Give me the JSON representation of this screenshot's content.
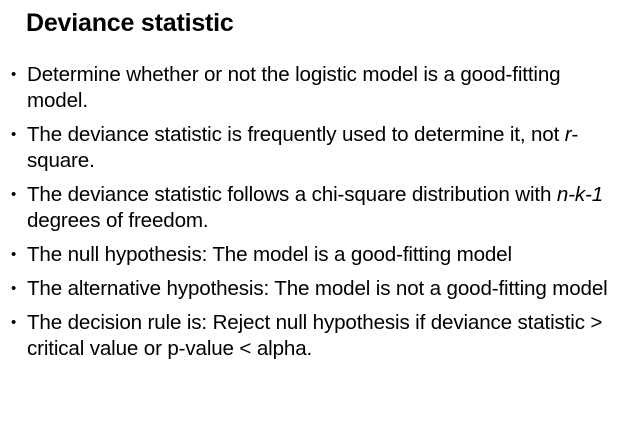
{
  "slide": {
    "title": "Deviance statistic",
    "bullets": [
      {
        "parts": [
          {
            "text": "Determine whether or not the logistic model is a good-fitting model.",
            "italic": false
          }
        ]
      },
      {
        "parts": [
          {
            "text": "The deviance statistic is frequently used to determine it, not ",
            "italic": false
          },
          {
            "text": "r",
            "italic": true
          },
          {
            "text": "-square.",
            "italic": false
          }
        ]
      },
      {
        "parts": [
          {
            "text": "The deviance statistic follows a chi-square distribution with ",
            "italic": false
          },
          {
            "text": "n-k-1",
            "italic": true
          },
          {
            "text": " degrees of freedom.",
            "italic": false
          }
        ]
      },
      {
        "parts": [
          {
            "text": "The null hypothesis: The model is a good-fitting model",
            "italic": false
          }
        ]
      },
      {
        "parts": [
          {
            "text": "The alternative hypothesis:  The model is not a good-fitting model",
            "italic": false
          }
        ]
      },
      {
        "parts": [
          {
            "text": "The decision rule is: Reject null hypothesis if deviance statistic > critical value  or p-value < alpha.",
            "italic": false
          }
        ]
      }
    ]
  }
}
